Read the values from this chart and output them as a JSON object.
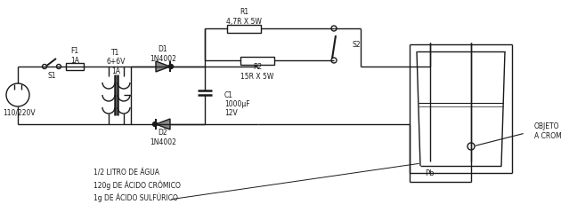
{
  "bg_color": "#ffffff",
  "line_color": "#1a1a1a",
  "line_width": 1.0,
  "labels": {
    "F1": "F1\n1A",
    "T1": "T1\n6+6V\n1A",
    "D1": "D1\n1N4002",
    "D2": "D2\n1N4002",
    "R1": "R1\n4,7R X 5W",
    "R2": "R2\n15R X 5W",
    "C1": "C1\n1000μF\n12V",
    "S1": "S1",
    "S2": "S2",
    "plug": "110/220V",
    "Pb": "Pb",
    "objeto": "OBJETO\nA CROMAR",
    "solution": "1/2 LITRO DE ÁGUA\n120g DE ÁCIDO CRÔMICO\n1g DE ÁCIDO SULFÚRICO"
  }
}
